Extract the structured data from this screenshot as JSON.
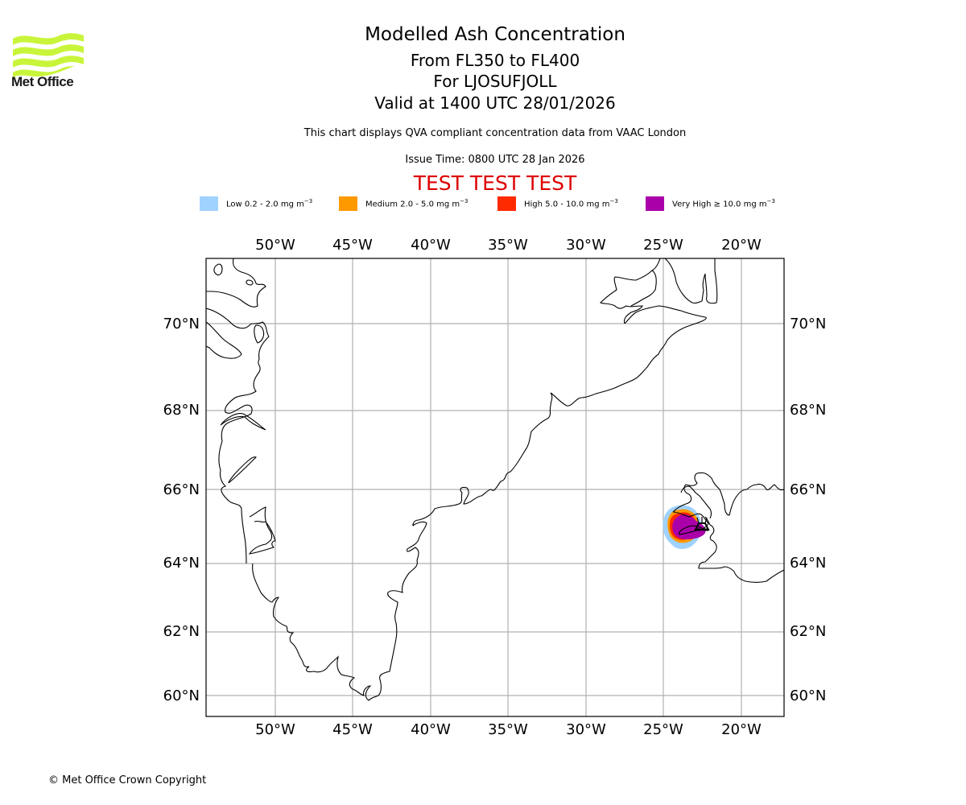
{
  "header": {
    "logo_text": "Met Office",
    "title": "Modelled Ash Concentration",
    "levels": "From FL350 to FL400",
    "volcano": "For LJOSUFJOLL",
    "valid": "Valid at 1400 UTC 28/01/2026",
    "description": "This chart displays QVA compliant concentration data from VAAC London",
    "issue_time": "Issue Time: 0800 UTC 28 Jan 2026",
    "test_banner": "TEST TEST TEST"
  },
  "legend": [
    {
      "name": "Low",
      "text": "Low 0.2 - 2.0 mg m",
      "exp": "−3",
      "color": "#a0d2ff"
    },
    {
      "name": "Medium",
      "text": "Medium 2.0 - 5.0 mg m",
      "exp": "−3",
      "color": "#ff9900"
    },
    {
      "name": "High",
      "text": "High 5.0 - 10.0 mg m",
      "exp": "−3",
      "color": "#ff2a00"
    },
    {
      "name": "Very High",
      "text": "Very High  ≥  10.0 mg m",
      "exp": "−3",
      "color": "#aa00aa"
    }
  ],
  "map": {
    "lon_labels": [
      "50°W",
      "45°W",
      "40°W",
      "35°W",
      "30°W",
      "25°W",
      "20°W"
    ],
    "lat_labels": [
      "70°N",
      "68°N",
      "66°N",
      "64°N",
      "62°N",
      "60°N"
    ],
    "volcano_icon": "volcano-icon",
    "colors": {
      "gridline": "#b0b0b0",
      "coastline": "#000000",
      "frame": "#000000"
    }
  },
  "footer": {
    "copyright": "© Met Office Crown Copyright"
  }
}
